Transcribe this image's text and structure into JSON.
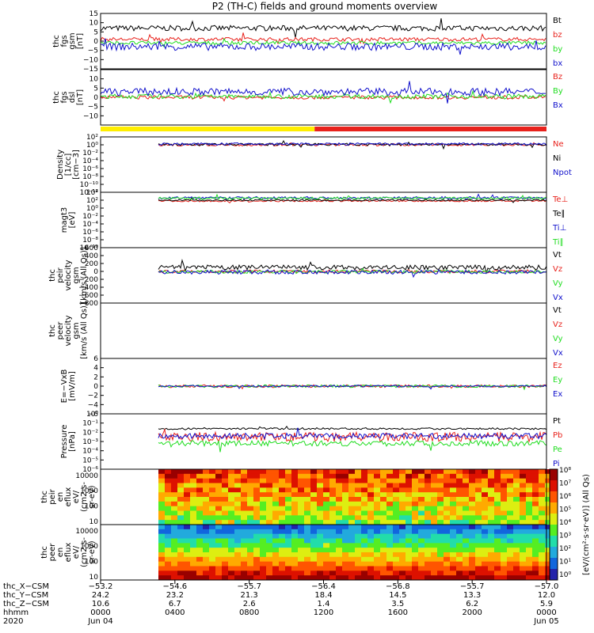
{
  "title": "P2 (TH-C) fields and ground moments overview",
  "colors": {
    "black": "#000000",
    "red": "#e8221c",
    "green": "#22dd22",
    "blue": "#1111cc",
    "yellow": "#ffee00"
  },
  "chart_data": [
    {
      "type": "line",
      "id": "fgs_gsm",
      "ylabel": [
        "thc",
        "fgs",
        "gsm",
        "[nT]"
      ],
      "ylim": [
        -15,
        15
      ],
      "yticks": [
        {
          "v": 15,
          "t": "15"
        },
        {
          "v": 10,
          "t": "10"
        },
        {
          "v": 5,
          "t": "5"
        },
        {
          "v": 0,
          "t": "0"
        },
        {
          "v": -5,
          "t": "−5"
        },
        {
          "v": -10,
          "t": "−10"
        },
        {
          "v": -15,
          "t": "−15"
        }
      ],
      "series": [
        {
          "name": "Bt",
          "color": "black",
          "base": 7,
          "noise": 1.5
        },
        {
          "name": "bz",
          "color": "red",
          "base": 1,
          "noise": 1
        },
        {
          "name": "by",
          "color": "green",
          "base": -1,
          "noise": 1
        },
        {
          "name": "bx",
          "color": "blue",
          "base": -3,
          "noise": 2
        }
      ]
    },
    {
      "type": "line",
      "id": "fgs_dsl",
      "ylabel": [
        "thc",
        "fgs",
        "dsl",
        "[nT]"
      ],
      "ylim": [
        -15,
        15
      ],
      "yticks": [
        {
          "v": 10,
          "t": "10"
        },
        {
          "v": 5,
          "t": "5"
        },
        {
          "v": 0,
          "t": "0"
        },
        {
          "v": -5,
          "t": "−5"
        },
        {
          "v": -10,
          "t": "−10"
        }
      ],
      "series": [
        {
          "name": "Bz",
          "color": "red",
          "base": 0,
          "noise": 1
        },
        {
          "name": "By",
          "color": "green",
          "base": 0.5,
          "noise": 1.2
        },
        {
          "name": "Bx",
          "color": "blue",
          "base": 3,
          "noise": 2
        }
      ]
    },
    {
      "type": "line",
      "id": "density",
      "ylabel": [
        "Density",
        "[1/cc]",
        "[cm−3]"
      ],
      "log": true,
      "ylim": [
        -12,
        2
      ],
      "yticks": [
        {
          "v": 2,
          "t": "10²"
        },
        {
          "v": 0,
          "t": "10⁰"
        },
        {
          "v": -2,
          "t": "10⁻²"
        },
        {
          "v": -4,
          "t": "10⁻⁴"
        },
        {
          "v": -6,
          "t": "10⁻⁶"
        },
        {
          "v": -8,
          "t": "10⁻⁸"
        },
        {
          "v": -10,
          "t": "10⁻¹⁰"
        },
        {
          "v": -12,
          "t": "10⁻¹²"
        }
      ],
      "series": [
        {
          "name": "Ne",
          "color": "red",
          "base": 0,
          "noise": 0.3
        },
        {
          "name": "Ni",
          "color": "black",
          "base": 0.1,
          "noise": 0.3
        },
        {
          "name": "Npot",
          "color": "blue",
          "base": 0.2,
          "noise": 0.3
        }
      ]
    },
    {
      "type": "line",
      "id": "temp",
      "ylabel": [
        "magt3",
        "[eV]"
      ],
      "log": true,
      "ylim": [
        -10,
        4
      ],
      "yticks": [
        {
          "v": 4,
          "t": "10⁴"
        },
        {
          "v": 2,
          "t": "10²"
        },
        {
          "v": 0,
          "t": "10⁰"
        },
        {
          "v": -2,
          "t": "10⁻²"
        },
        {
          "v": -4,
          "t": "10⁻⁴"
        },
        {
          "v": -6,
          "t": "10⁻⁶"
        },
        {
          "v": -8,
          "t": "10⁻⁸"
        },
        {
          "v": -10,
          "t": "10⁻¹⁰"
        }
      ],
      "series": [
        {
          "name": "Te⊥",
          "color": "red",
          "base": 1.8,
          "noise": 0.2
        },
        {
          "name": "Te∥",
          "color": "black",
          "base": 2,
          "noise": 0.2
        },
        {
          "name": "Ti⊥",
          "color": "blue",
          "base": 2.6,
          "noise": 0.3
        },
        {
          "name": "Ti∥",
          "color": "green",
          "base": 2.5,
          "noise": 0.3
        }
      ]
    },
    {
      "type": "line",
      "id": "peir_vel",
      "ylabel": [
        "thc",
        "peir",
        "velocity",
        "gsm",
        "[km/s (All Qs)]"
      ],
      "ylim": [
        -800,
        600
      ],
      "yticks": [
        {
          "v": 600,
          "t": "600"
        },
        {
          "v": 400,
          "t": "400"
        },
        {
          "v": 200,
          "t": "200"
        },
        {
          "v": 0,
          "t": "0"
        },
        {
          "v": -200,
          "t": "−200"
        },
        {
          "v": -400,
          "t": "−400"
        },
        {
          "v": -600,
          "t": "−600"
        },
        {
          "v": -800,
          "t": "−800"
        }
      ],
      "series": [
        {
          "name": "Vt",
          "color": "black",
          "base": 100,
          "noise": 60
        },
        {
          "name": "Vz",
          "color": "red",
          "base": 0,
          "noise": 40
        },
        {
          "name": "Vy",
          "color": "green",
          "base": -10,
          "noise": 40
        },
        {
          "name": "Vx",
          "color": "blue",
          "base": -20,
          "noise": 50
        }
      ]
    },
    {
      "type": "line",
      "id": "peer_vel",
      "ylabel": [
        "thc",
        "peer",
        "velocity",
        "gsm",
        "[km/s (All Qs)]"
      ],
      "ylim": [
        -800,
        600
      ],
      "yticks": [],
      "series": [
        {
          "name": "Vt",
          "color": "black"
        },
        {
          "name": "Vz",
          "color": "red"
        },
        {
          "name": "Vy",
          "color": "green"
        },
        {
          "name": "Vx",
          "color": "blue"
        }
      ]
    },
    {
      "type": "line",
      "id": "efield",
      "ylabel": [
        "E=−VxB",
        "[mV/m]"
      ],
      "ylim": [
        -6,
        6
      ],
      "yticks": [
        {
          "v": 6,
          "t": "6"
        },
        {
          "v": 4,
          "t": "4"
        },
        {
          "v": 2,
          "t": "2"
        },
        {
          "v": 0,
          "t": "0"
        },
        {
          "v": -2,
          "t": "−2"
        },
        {
          "v": -4,
          "t": "−4"
        },
        {
          "v": -6,
          "t": "−6"
        }
      ],
      "series": [
        {
          "name": "Ez",
          "color": "red",
          "base": 0,
          "noise": 0.3
        },
        {
          "name": "Ey",
          "color": "green",
          "base": 0,
          "noise": 0.3
        },
        {
          "name": "Ex",
          "color": "blue",
          "base": 0,
          "noise": 0.2
        }
      ]
    },
    {
      "type": "line",
      "id": "pressure",
      "ylabel": [
        "Pressure",
        "[nPa]"
      ],
      "log": true,
      "ylim": [
        -6,
        0
      ],
      "yticks": [
        {
          "v": 0,
          "t": "10⁰"
        },
        {
          "v": -1,
          "t": "10⁻¹"
        },
        {
          "v": -2,
          "t": "10⁻²"
        },
        {
          "v": -3,
          "t": "10⁻³"
        },
        {
          "v": -4,
          "t": "10⁻⁴"
        },
        {
          "v": -5,
          "t": "10⁻⁵"
        },
        {
          "v": -6,
          "t": "10⁻⁶"
        }
      ],
      "series": [
        {
          "name": "Pt",
          "color": "black",
          "base": -1.6,
          "noise": 0.1
        },
        {
          "name": "Pb",
          "color": "red",
          "base": -2.5,
          "noise": 0.5
        },
        {
          "name": "Pe",
          "color": "green",
          "base": -3.2,
          "noise": 0.3
        },
        {
          "name": "Pi",
          "color": "blue",
          "base": -2.4,
          "noise": 0.3
        }
      ]
    },
    {
      "type": "heatmap",
      "id": "peir_eflux",
      "ylabel": [
        "thc",
        "peir",
        "en",
        "eflux",
        "eV/",
        "(cm2-s-",
        "sr-eV)"
      ],
      "yticks": [
        {
          "v": 10000,
          "t": "10000"
        },
        {
          "v": 1000,
          "t": "1000"
        },
        {
          "v": 100,
          "t": "100"
        },
        {
          "v": 10,
          "t": "10"
        }
      ]
    },
    {
      "type": "heatmap",
      "id": "peer_eflux",
      "ylabel": [
        "thc",
        "peer",
        "en",
        "eflux",
        "eV/",
        "(cm2-s-",
        "sr-eV)"
      ],
      "yticks": [
        {
          "v": 10000,
          "t": "10000"
        },
        {
          "v": 1000,
          "t": "1000"
        },
        {
          "v": 100,
          "t": "100"
        },
        {
          "v": 10,
          "t": "10"
        }
      ]
    }
  ],
  "colorbar": {
    "label": "[eV/(cm²·s·sr·eV)] (All Qs)",
    "ticks": [
      "10⁸",
      "10⁷",
      "10⁶",
      "10⁵",
      "10⁴",
      "10³",
      "10²",
      "10¹",
      "10⁰"
    ]
  },
  "xaxis": {
    "rows": [
      {
        "label": "thc_X−CSM",
        "values": [
          "−53.2",
          "−54.6",
          "−55.7",
          "−56.4",
          "−56.8",
          "−55.7",
          "−57.0"
        ]
      },
      {
        "label": "thc_Y−CSM",
        "values": [
          "24.2",
          "23.2",
          "21.3",
          "18.4",
          "14.5",
          "13.3",
          "12.0"
        ]
      },
      {
        "label": "thc_Z−CSM",
        "values": [
          "10.6",
          "6.7",
          "2.6",
          "1.4",
          "3.5",
          "6.2",
          "5.9"
        ]
      },
      {
        "label": "hhmm",
        "values": [
          "0000",
          "0400",
          "0800",
          "1200",
          "1600",
          "2000",
          "0000"
        ]
      },
      {
        "label": "2020",
        "values": [
          "Jun 04",
          "",
          "",
          "",
          "",
          "",
          "Jun 05"
        ]
      }
    ]
  }
}
